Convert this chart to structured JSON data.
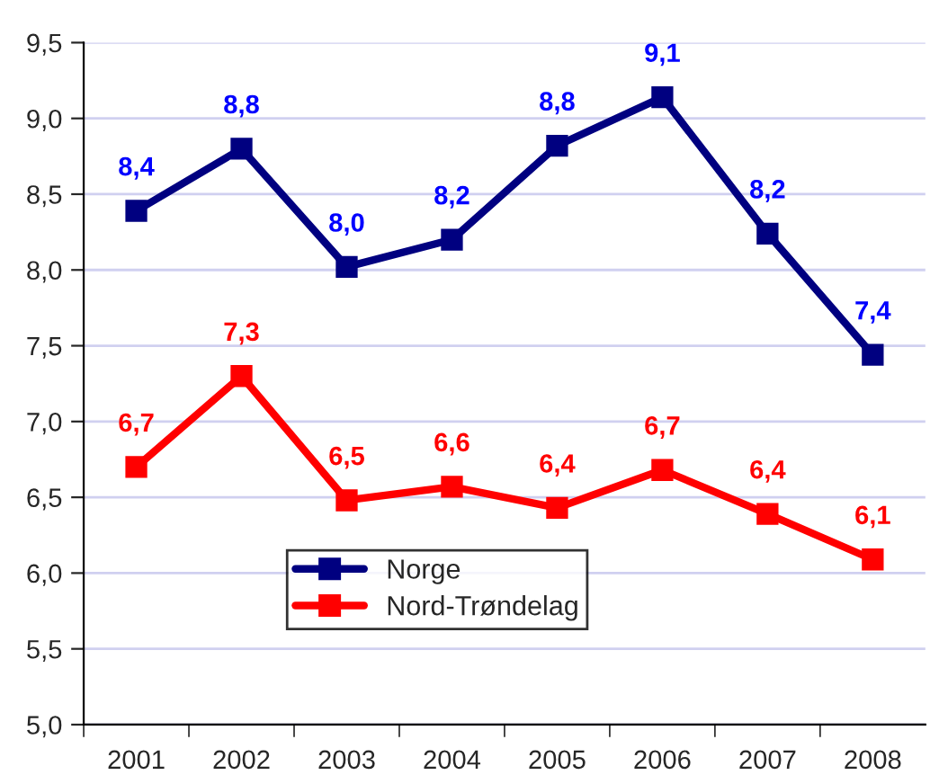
{
  "chart_data": {
    "type": "line",
    "categories": [
      "2001",
      "2002",
      "2003",
      "2004",
      "2005",
      "2006",
      "2007",
      "2008"
    ],
    "series": [
      {
        "name": "Norge",
        "color": "#000080",
        "values": [
          8.39,
          8.8,
          8.02,
          8.2,
          8.82,
          9.14,
          8.24,
          7.44
        ],
        "value_labels": [
          "8,4",
          "8,8",
          "8,0",
          "8,2",
          "8,8",
          "9,1",
          "8,2",
          "7,4"
        ]
      },
      {
        "name": "Nord-Trøndelag",
        "color": "#ff0000",
        "values": [
          6.7,
          7.3,
          6.48,
          6.57,
          6.43,
          6.68,
          6.39,
          6.09
        ],
        "value_labels": [
          "6,7",
          "7,3",
          "6,5",
          "6,6",
          "6,4",
          "6,7",
          "6,4",
          "6,1"
        ]
      }
    ],
    "ylim": [
      5.0,
      9.5
    ],
    "yticks": [
      {
        "value": 5.0,
        "label": "5,0"
      },
      {
        "value": 5.5,
        "label": "5,5"
      },
      {
        "value": 6.0,
        "label": "6,0"
      },
      {
        "value": 6.5,
        "label": "6,5"
      },
      {
        "value": 7.0,
        "label": "7,0"
      },
      {
        "value": 7.5,
        "label": "7,5"
      },
      {
        "value": 8.0,
        "label": "8,0"
      },
      {
        "value": 8.5,
        "label": "8,5"
      },
      {
        "value": 9.0,
        "label": "9,0"
      },
      {
        "value": 9.5,
        "label": "9,5"
      }
    ],
    "grid": "y",
    "legend": "bottom",
    "marker": "square",
    "line_style": "solid"
  }
}
